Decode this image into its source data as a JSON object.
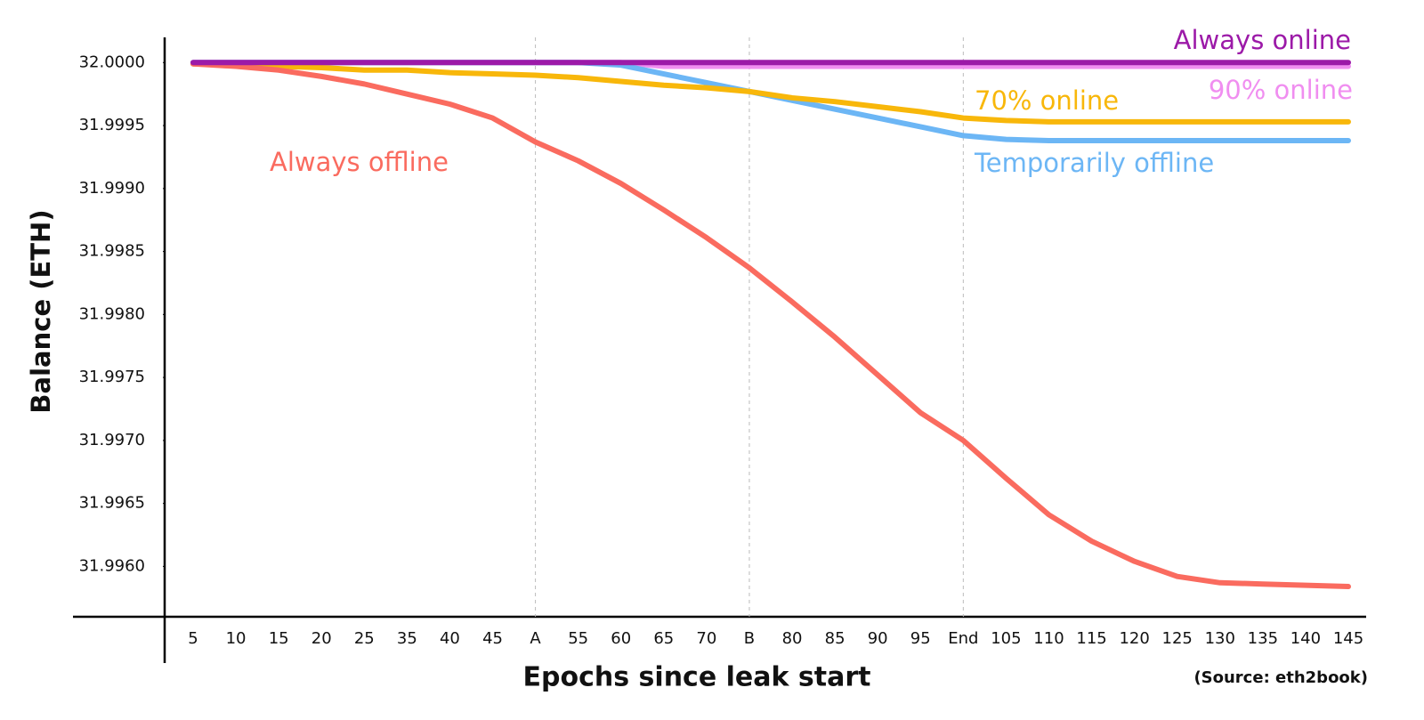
{
  "chart_data": {
    "type": "line",
    "x_label": "Epochs since leak start",
    "y_label": "Balance (ETH)",
    "source": "(Source: eth2book)",
    "categories": [
      "5",
      "10",
      "15",
      "20",
      "25",
      "35",
      "40",
      "45",
      "A",
      "55",
      "60",
      "65",
      "70",
      "B",
      "80",
      "85",
      "90",
      "95",
      "End",
      "105",
      "110",
      "115",
      "120",
      "125",
      "130",
      "135",
      "140",
      "145"
    ],
    "vertical_lines": [
      "A",
      "B",
      "End"
    ],
    "ylim": [
      31.9956,
      32.0002
    ],
    "yticks": [
      {
        "value": 32.0,
        "label": "32.0000"
      },
      {
        "value": 31.9995,
        "label": "31.9995"
      },
      {
        "value": 31.999,
        "label": "31.9990"
      },
      {
        "value": 31.9985,
        "label": "31.9985"
      },
      {
        "value": 31.998,
        "label": "31.9980"
      },
      {
        "value": 31.9975,
        "label": "31.9975"
      },
      {
        "value": 31.997,
        "label": "31.9970"
      },
      {
        "value": 31.9965,
        "label": "31.9965"
      },
      {
        "value": 31.996,
        "label": "31.9960"
      }
    ],
    "series": [
      {
        "name": "90% online",
        "color": "#f08ef0",
        "values": [
          32,
          32,
          32,
          32,
          32,
          32,
          32,
          32,
          32,
          32,
          32,
          31.99997,
          31.99997,
          31.99997,
          31.99997,
          31.99997,
          31.99997,
          31.99997,
          31.99997,
          31.99997,
          31.99997,
          31.99997,
          31.99997,
          31.99997,
          31.99997,
          31.99997,
          31.99997,
          31.99997
        ]
      },
      {
        "name": "Temporarily offline",
        "color": "#6cb6f5",
        "values": [
          32,
          32,
          32,
          32,
          32,
          32,
          32,
          32,
          32,
          32,
          31.99998,
          31.99991,
          31.99984,
          31.99977,
          31.9997,
          31.99963,
          31.99956,
          31.99949,
          31.99942,
          31.99939,
          31.99938,
          31.99938,
          31.99938,
          31.99938,
          31.99938,
          31.99938,
          31.99938,
          31.99938
        ]
      },
      {
        "name": "70% online",
        "color": "#f8b70a",
        "values": [
          31.99999,
          31.99998,
          31.99997,
          31.99996,
          31.99994,
          31.99994,
          31.99992,
          31.99991,
          31.9999,
          31.99988,
          31.99985,
          31.99982,
          31.9998,
          31.99977,
          31.99972,
          31.99969,
          31.99965,
          31.99961,
          31.99956,
          31.99954,
          31.99953,
          31.99953,
          31.99953,
          31.99953,
          31.99953,
          31.99953,
          31.99953,
          31.99953
        ]
      },
      {
        "name": "Always offline",
        "color": "#fa6b5f",
        "values": [
          31.99999,
          31.99997,
          31.99994,
          31.99989,
          31.99983,
          31.99975,
          31.99967,
          31.99956,
          31.99937,
          31.99922,
          31.99904,
          31.99883,
          31.99861,
          31.99837,
          31.9981,
          31.99782,
          31.99752,
          31.99722,
          31.997,
          31.9967,
          31.99641,
          31.9962,
          31.99604,
          31.99592,
          31.99587,
          31.99586,
          31.99585,
          31.99584
        ]
      },
      {
        "name": "Always online",
        "color": "#9c1aa8",
        "values": [
          32,
          32,
          32,
          32,
          32,
          32,
          32,
          32,
          32,
          32,
          32,
          32,
          32,
          32,
          32,
          32,
          32,
          32,
          32,
          32,
          32,
          32,
          32,
          32,
          32,
          32,
          32,
          32
        ]
      }
    ]
  }
}
